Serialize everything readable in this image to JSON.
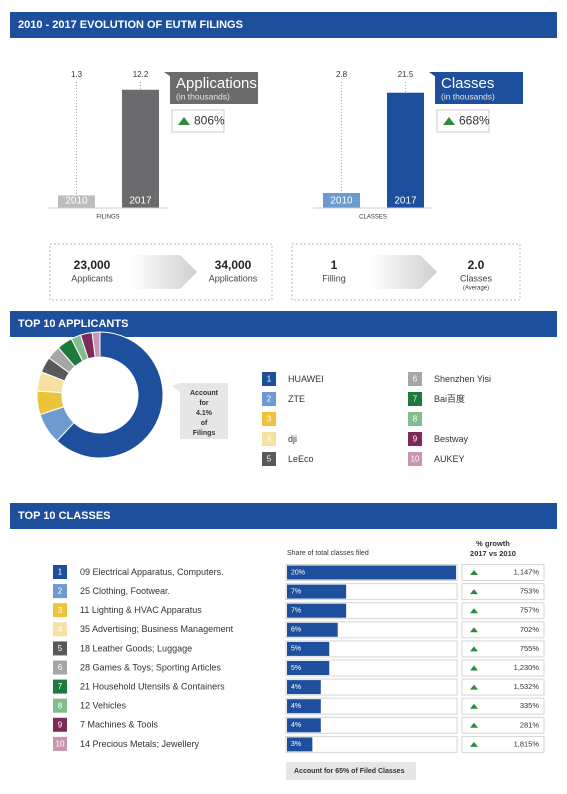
{
  "headers": [
    "2010 - 2017 EVOLUTION OF EUTM FILINGS",
    "TOP 10 APPLICANTS",
    "TOP 10 CLASSES"
  ],
  "chart_data": [
    {
      "type": "bar",
      "xlabel": "FILINGS",
      "categories": [
        "2010",
        "2017"
      ],
      "values": [
        1.3,
        12.2
      ],
      "colors": [
        "#bdbdbd",
        "#6b6b6e"
      ],
      "ylim": [
        0,
        13
      ],
      "label": "Applications",
      "sublabel": "(in thousands)",
      "label_color": "#6b6b6e",
      "growth": "806%"
    },
    {
      "type": "bar",
      "xlabel": "CLASSES",
      "categories": [
        "2010",
        "2017"
      ],
      "values": [
        2.8,
        21.5
      ],
      "colors": [
        "#6d9bd1",
        "#1d4f9c"
      ],
      "ylim": [
        0,
        23.5
      ],
      "label": "Classes",
      "sublabel": "(in thousands)",
      "label_color": "#1d4f9c",
      "growth": "668%"
    },
    {
      "type": "pie",
      "categories": [
        "HUAWEI",
        "ZTE",
        null,
        "dji",
        "LeEco",
        "Shenzhen Yisi",
        "Bai百度",
        null,
        "Bestway",
        "AUKEY"
      ],
      "ranks": [
        "1",
        "2",
        "3",
        "4",
        "5",
        "6",
        "7",
        "8",
        "9",
        "10"
      ],
      "values": [
        62,
        8,
        6,
        5,
        4,
        3.5,
        4,
        2.5,
        3,
        2
      ],
      "colors": [
        "#1d4f9c",
        "#6d9bd1",
        "#edc33c",
        "#f6e1a3",
        "#59595b",
        "#a6a6a6",
        "#1e7a3c",
        "#82bd8d",
        "#7b2a5a",
        "#c994b0"
      ],
      "note": [
        "Account",
        "for",
        "4.1%",
        "of",
        "Filings"
      ]
    },
    {
      "type": "hbar",
      "categories": [
        "09 Electrical Apparatus, Computers.",
        "25 Clothing, Footwear.",
        "11 Lighting & HVAC Apparatus",
        "35 Advertising; Business Management",
        "18 Leather Goods; Luggage",
        "28 Games & Toys; Sporting Articles",
        "21 Household Utensils & Containers",
        "12 Vehicles",
        "7 Machines & Tools",
        "14 Precious Metals; Jewellery"
      ],
      "ranks": [
        "1",
        "2",
        "3",
        "4",
        "5",
        "6",
        "7",
        "8",
        "9",
        "10"
      ],
      "colors": [
        "#1d4f9c",
        "#6d9bd1",
        "#edc33c",
        "#f6e1a3",
        "#59595b",
        "#a6a6a6",
        "#1e7a3c",
        "#82bd8d",
        "#7b2a5a",
        "#c994b0"
      ],
      "values": [
        20,
        7,
        7,
        6,
        5,
        5,
        4,
        4,
        4,
        3
      ],
      "value_labels": [
        "20%",
        "7%",
        "7%",
        "6%",
        "5%",
        "5%",
        "4%",
        "4%",
        "4%",
        "3%"
      ],
      "xlim": [
        0,
        20
      ],
      "bar_color": "#1d4f9c",
      "value_title": "Share of total classes filed",
      "growth_title": [
        "% growth",
        "2017 vs 2010"
      ],
      "growth_labels": [
        "1,147%",
        "753%",
        "757%",
        "702%",
        "755%",
        "1,230%",
        "1,532%",
        "335%",
        "281%",
        "1,815%"
      ],
      "note": "Account for 65% of Filed Classes"
    }
  ],
  "summary": [
    {
      "from_value": "23,000",
      "from_label": "Applicants",
      "to_value": "34,000",
      "to_label": "Applications"
    },
    {
      "from_value": "1",
      "from_label": "Filling",
      "to_value": "2.0",
      "to_label": "Classes",
      "to_note": "(Average)"
    }
  ]
}
